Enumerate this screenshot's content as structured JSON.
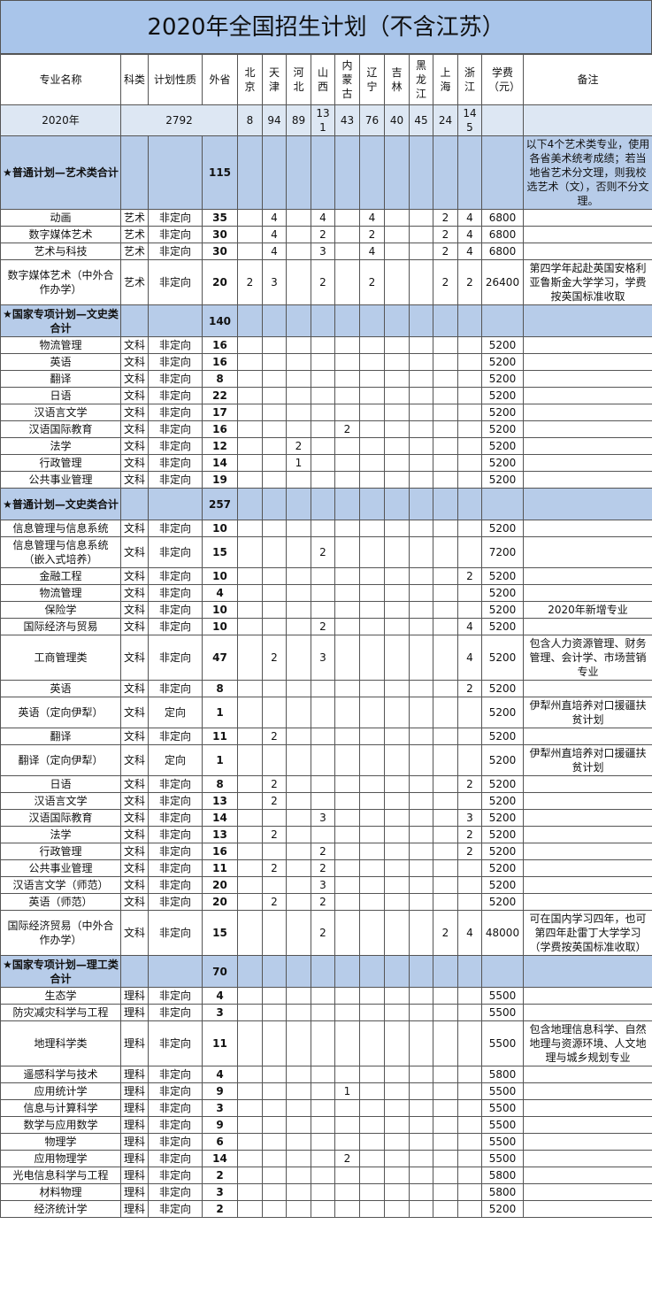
{
  "title": "2020年全国招生计划（不含江苏）",
  "headers": [
    "专业名称",
    "科类",
    "计划性质",
    "外省",
    "北京",
    "天津",
    "河北",
    "山西",
    "内蒙古",
    "辽宁",
    "吉林",
    "黑龙江",
    "上海",
    "浙江",
    "学费（元）",
    "备注"
  ],
  "summary": {
    "label": "2020年",
    "total": 2792,
    "provinces": [
      8,
      94,
      89,
      131,
      43,
      76,
      40,
      45,
      24,
      145
    ]
  },
  "sections": [
    {
      "name": "★普通计划—艺术类合计",
      "total": 115,
      "note": "以下4个艺术类专业，使用各省美术统考成绩；若当地省艺术分文理，则我校选艺术（文），否则不分文理。",
      "rows": [
        [
          "动画",
          "艺术",
          "非定向",
          35,
          null,
          4,
          null,
          4,
          null,
          4,
          null,
          null,
          2,
          4,
          6800,
          null
        ],
        [
          "数字媒体艺术",
          "艺术",
          "非定向",
          30,
          null,
          4,
          null,
          2,
          null,
          2,
          null,
          null,
          2,
          4,
          6800,
          null
        ],
        [
          "艺术与科技",
          "艺术",
          "非定向",
          30,
          null,
          4,
          null,
          3,
          null,
          4,
          null,
          null,
          2,
          4,
          6800,
          null
        ],
        [
          "数字媒体艺术（中外合作办学）",
          "艺术",
          "非定向",
          20,
          2,
          3,
          null,
          2,
          null,
          2,
          null,
          null,
          2,
          2,
          26400,
          "第四学年起赴英国安格利亚鲁斯金大学学习，学费按英国标准收取"
        ]
      ]
    },
    {
      "name": "★国家专项计划—文史类合计",
      "total": 140,
      "note": null,
      "rows": [
        [
          "物流管理",
          "文科",
          "非定向",
          16,
          null,
          null,
          null,
          null,
          null,
          null,
          null,
          null,
          null,
          null,
          5200,
          null
        ],
        [
          "英语",
          "文科",
          "非定向",
          16,
          null,
          null,
          null,
          null,
          null,
          null,
          null,
          null,
          null,
          null,
          5200,
          null
        ],
        [
          "翻译",
          "文科",
          "非定向",
          8,
          null,
          null,
          null,
          null,
          null,
          null,
          null,
          null,
          null,
          null,
          5200,
          null
        ],
        [
          "日语",
          "文科",
          "非定向",
          22,
          null,
          null,
          null,
          null,
          null,
          null,
          null,
          null,
          null,
          null,
          5200,
          null
        ],
        [
          "汉语言文学",
          "文科",
          "非定向",
          17,
          null,
          null,
          null,
          null,
          null,
          null,
          null,
          null,
          null,
          null,
          5200,
          null
        ],
        [
          "汉语国际教育",
          "文科",
          "非定向",
          16,
          null,
          null,
          null,
          null,
          2,
          null,
          null,
          null,
          null,
          null,
          5200,
          null
        ],
        [
          "法学",
          "文科",
          "非定向",
          12,
          null,
          null,
          2,
          null,
          null,
          null,
          null,
          null,
          null,
          null,
          5200,
          null
        ],
        [
          "行政管理",
          "文科",
          "非定向",
          14,
          null,
          null,
          1,
          null,
          null,
          null,
          null,
          null,
          null,
          null,
          5200,
          null
        ],
        [
          "公共事业管理",
          "文科",
          "非定向",
          19,
          null,
          null,
          null,
          null,
          null,
          null,
          null,
          null,
          null,
          null,
          5200,
          null
        ]
      ]
    },
    {
      "name": "★普通计划—文史类合计",
      "total": 257,
      "note": null,
      "rows": [
        [
          "信息管理与信息系统",
          "文科",
          "非定向",
          10,
          null,
          null,
          null,
          null,
          null,
          null,
          null,
          null,
          null,
          null,
          5200,
          null
        ],
        [
          "信息管理与信息系统（嵌入式培养）",
          "文科",
          "非定向",
          15,
          null,
          null,
          null,
          2,
          null,
          null,
          null,
          null,
          null,
          null,
          7200,
          null
        ],
        [
          "金融工程",
          "文科",
          "非定向",
          10,
          null,
          null,
          null,
          null,
          null,
          null,
          null,
          null,
          null,
          2,
          5200,
          null
        ],
        [
          "物流管理",
          "文科",
          "非定向",
          4,
          null,
          null,
          null,
          null,
          null,
          null,
          null,
          null,
          null,
          null,
          5200,
          null
        ],
        [
          "保险学",
          "文科",
          "非定向",
          10,
          null,
          null,
          null,
          null,
          null,
          null,
          null,
          null,
          null,
          null,
          5200,
          "2020年新增专业"
        ],
        [
          "国际经济与贸易",
          "文科",
          "非定向",
          10,
          null,
          null,
          null,
          2,
          null,
          null,
          null,
          null,
          null,
          4,
          5200,
          null
        ],
        [
          "工商管理类",
          "文科",
          "非定向",
          47,
          null,
          2,
          null,
          3,
          null,
          null,
          null,
          null,
          null,
          4,
          5200,
          "包含人力资源管理、财务管理、会计学、市场营销专业"
        ],
        [
          "英语",
          "文科",
          "非定向",
          8,
          null,
          null,
          null,
          null,
          null,
          null,
          null,
          null,
          null,
          2,
          5200,
          null
        ],
        [
          "英语（定向伊犁）",
          "文科",
          "定向",
          1,
          null,
          null,
          null,
          null,
          null,
          null,
          null,
          null,
          null,
          null,
          5200,
          "伊犁州直培养对口援疆扶贫计划"
        ],
        [
          "翻译",
          "文科",
          "非定向",
          11,
          null,
          2,
          null,
          null,
          null,
          null,
          null,
          null,
          null,
          null,
          5200,
          null
        ],
        [
          "翻译（定向伊犁）",
          "文科",
          "定向",
          1,
          null,
          null,
          null,
          null,
          null,
          null,
          null,
          null,
          null,
          null,
          5200,
          "伊犁州直培养对口援疆扶贫计划"
        ],
        [
          "日语",
          "文科",
          "非定向",
          8,
          null,
          2,
          null,
          null,
          null,
          null,
          null,
          null,
          null,
          2,
          5200,
          null
        ],
        [
          "汉语言文学",
          "文科",
          "非定向",
          13,
          null,
          2,
          null,
          null,
          null,
          null,
          null,
          null,
          null,
          null,
          5200,
          null
        ],
        [
          "汉语国际教育",
          "文科",
          "非定向",
          14,
          null,
          null,
          null,
          3,
          null,
          null,
          null,
          null,
          null,
          3,
          5200,
          null
        ],
        [
          "法学",
          "文科",
          "非定向",
          13,
          null,
          2,
          null,
          null,
          null,
          null,
          null,
          null,
          null,
          2,
          5200,
          null
        ],
        [
          "行政管理",
          "文科",
          "非定向",
          16,
          null,
          null,
          null,
          2,
          null,
          null,
          null,
          null,
          null,
          2,
          5200,
          null
        ],
        [
          "公共事业管理",
          "文科",
          "非定向",
          11,
          null,
          2,
          null,
          2,
          null,
          null,
          null,
          null,
          null,
          null,
          5200,
          null
        ],
        [
          "汉语言文学（师范）",
          "文科",
          "非定向",
          20,
          null,
          null,
          null,
          3,
          null,
          null,
          null,
          null,
          null,
          null,
          5200,
          null
        ],
        [
          "英语（师范）",
          "文科",
          "非定向",
          20,
          null,
          2,
          null,
          2,
          null,
          null,
          null,
          null,
          null,
          null,
          5200,
          null
        ],
        [
          "国际经济贸易（中外合作办学）",
          "文科",
          "非定向",
          15,
          null,
          null,
          null,
          2,
          null,
          null,
          null,
          null,
          2,
          4,
          48000,
          "可在国内学习四年，也可第四年赴雷丁大学学习（学费按英国标准收取）"
        ]
      ]
    },
    {
      "name": "★国家专项计划—理工类合计",
      "total": 70,
      "note": null,
      "rows": [
        [
          "生态学",
          "理科",
          "非定向",
          4,
          null,
          null,
          null,
          null,
          null,
          null,
          null,
          null,
          null,
          null,
          5500,
          null
        ],
        [
          "防灾减灾科学与工程",
          "理科",
          "非定向",
          3,
          null,
          null,
          null,
          null,
          null,
          null,
          null,
          null,
          null,
          null,
          5500,
          null
        ],
        [
          "地理科学类",
          "理科",
          "非定向",
          11,
          null,
          null,
          null,
          null,
          null,
          null,
          null,
          null,
          null,
          null,
          5500,
          "包含地理信息科学、自然地理与资源环境、人文地理与城乡规划专业"
        ],
        [
          "遥感科学与技术",
          "理科",
          "非定向",
          4,
          null,
          null,
          null,
          null,
          null,
          null,
          null,
          null,
          null,
          null,
          5800,
          null
        ],
        [
          "应用统计学",
          "理科",
          "非定向",
          9,
          null,
          null,
          null,
          null,
          1,
          null,
          null,
          null,
          null,
          null,
          5500,
          null
        ],
        [
          "信息与计算科学",
          "理科",
          "非定向",
          3,
          null,
          null,
          null,
          null,
          null,
          null,
          null,
          null,
          null,
          null,
          5500,
          null
        ],
        [
          "数学与应用数学",
          "理科",
          "非定向",
          9,
          null,
          null,
          null,
          null,
          null,
          null,
          null,
          null,
          null,
          null,
          5500,
          null
        ],
        [
          "物理学",
          "理科",
          "非定向",
          6,
          null,
          null,
          null,
          null,
          null,
          null,
          null,
          null,
          null,
          null,
          5500,
          null
        ],
        [
          "应用物理学",
          "理科",
          "非定向",
          14,
          null,
          null,
          null,
          null,
          2,
          null,
          null,
          null,
          null,
          null,
          5500,
          null
        ],
        [
          "光电信息科学与工程",
          "理科",
          "非定向",
          2,
          null,
          null,
          null,
          null,
          null,
          null,
          null,
          null,
          null,
          null,
          5800,
          null
        ],
        [
          "材料物理",
          "理科",
          "非定向",
          3,
          null,
          null,
          null,
          null,
          null,
          null,
          null,
          null,
          null,
          null,
          5800,
          null
        ],
        [
          "经济统计学",
          "理科",
          "非定向",
          2,
          null,
          null,
          null,
          null,
          null,
          null,
          null,
          null,
          null,
          null,
          5200,
          null
        ]
      ]
    }
  ]
}
